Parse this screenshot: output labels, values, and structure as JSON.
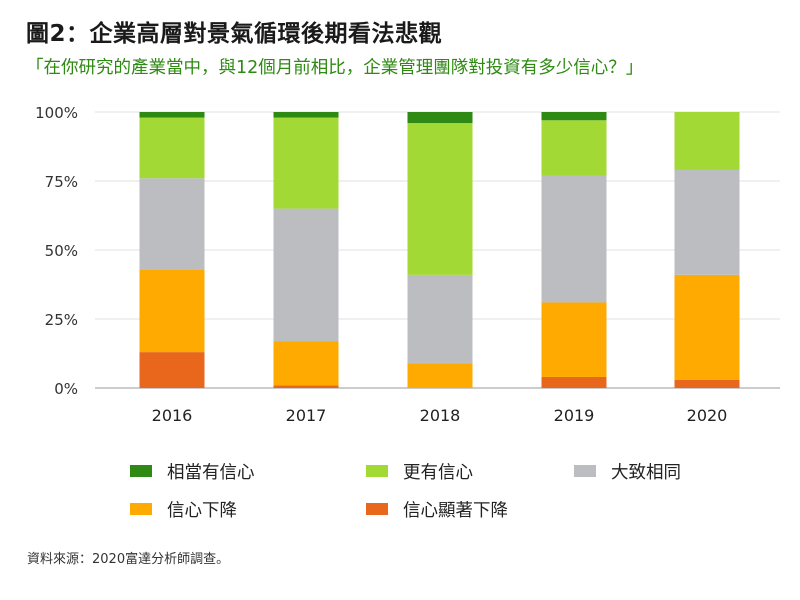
{
  "title": "圖2：企業高層對景氣循環後期看法悲觀",
  "subtitle": "「在你研究的產業當中，與12個月前相比，企業管理團隊對投資有多少信心？」",
  "source": "資料來源：2020富達分析師調查。",
  "chart_data": {
    "type": "bar",
    "stacked": true,
    "categories": [
      "2016",
      "2017",
      "2018",
      "2019",
      "2020"
    ],
    "ylim": [
      0,
      100
    ],
    "yticks": [
      "0%",
      "25%",
      "50%",
      "75%",
      "100%"
    ],
    "grid": true,
    "legend_position": "bottom",
    "series": [
      {
        "name": "信心顯著下降",
        "color": "#e8671c",
        "values": [
          13,
          1,
          0,
          4,
          3
        ]
      },
      {
        "name": "信心下降",
        "color": "#ffaa00",
        "values": [
          30,
          16,
          9,
          27,
          38
        ]
      },
      {
        "name": "大致相同",
        "color": "#bbbdc1",
        "values": [
          33,
          48,
          32,
          46,
          38
        ]
      },
      {
        "name": "更有信心",
        "color": "#a2d935",
        "values": [
          22,
          33,
          55,
          20,
          21
        ]
      },
      {
        "name": "相當有信心",
        "color": "#2e8a12",
        "values": [
          2,
          2,
          4,
          3,
          0
        ]
      }
    ],
    "legend_order": [
      "相當有信心",
      "更有信心",
      "大致相同",
      "信心下降",
      "信心顯著下降"
    ]
  }
}
